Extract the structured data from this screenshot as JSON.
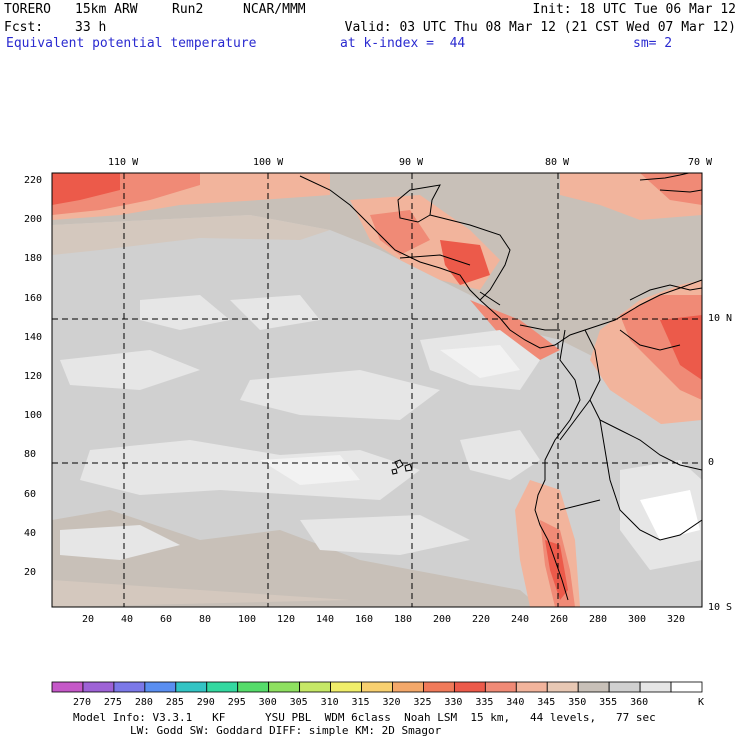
{
  "header": {
    "model": "TORERO",
    "resolution": "15km ARW",
    "run": "Run2",
    "org": "NCAR/MMM",
    "init": "Init: 18 UTC Tue 06 Mar 12",
    "fcst_label": "Fcst:",
    "fcst_value": "33 h",
    "valid": "Valid: 03 UTC Thu 08 Mar 12 (21 CST Wed 07 Mar 12)",
    "field": "Equivalent potential temperature",
    "level": "at k-index =  44",
    "smooth": "sm= 2"
  },
  "map": {
    "lon_labels": [
      "110 W",
      "100 W",
      "90 W",
      "80 W",
      "70 W"
    ],
    "lat_labels": [
      "10 N",
      "0",
      "10 S"
    ],
    "y_ticks": [
      "220",
      "200",
      "180",
      "160",
      "140",
      "120",
      "100",
      "80",
      "60",
      "40",
      "20"
    ],
    "x_ticks": [
      "20",
      "40",
      "60",
      "80",
      "100",
      "120",
      "140",
      "160",
      "180",
      "200",
      "220",
      "240",
      "260",
      "280",
      "300",
      "320"
    ]
  },
  "colorbar": {
    "labels": [
      "270",
      "275",
      "280",
      "285",
      "290",
      "295",
      "300",
      "305",
      "310",
      "315",
      "320",
      "325",
      "330",
      "335",
      "340",
      "345",
      "350",
      "355",
      "360"
    ],
    "unit": "K",
    "colors": [
      "#c558c8",
      "#9e62d6",
      "#7b78e8",
      "#5a8ef0",
      "#33c4c4",
      "#33d8a0",
      "#55dc6a",
      "#8ee060",
      "#c6e866",
      "#f0ee6a",
      "#f8d070",
      "#f4a86a",
      "#f07a5a",
      "#ec5a4a",
      "#f08a76",
      "#f2b49c",
      "#e8c8b4",
      "#c8c0b8",
      "#d0d0d0",
      "#e6e6e6",
      "#ffffff"
    ]
  },
  "footer": {
    "line1": "Model Info: V3.3.1   KF      YSU PBL  WDM 6class  Noah LSM  15 km,   44 levels,   77 sec",
    "line2": "LW: Godd SW: Goddard DIFF: simple KM: 2D Smagor"
  }
}
